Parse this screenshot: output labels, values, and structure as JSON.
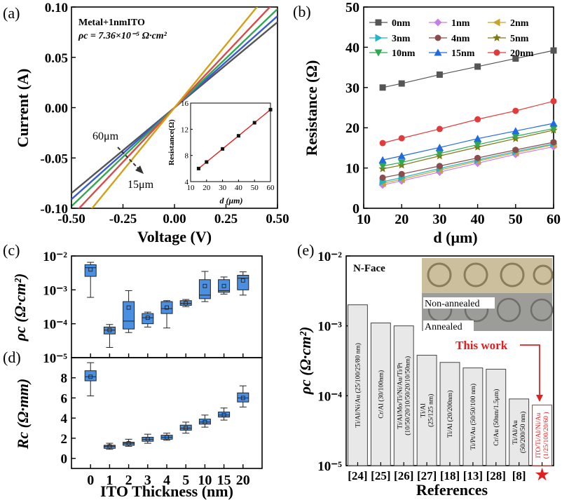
{
  "panels": {
    "a": {
      "label": "(a)",
      "xlabel": "Voltage (V)",
      "ylabel": "Current (A)",
      "xlim": [
        -0.5,
        0.5
      ],
      "ylim": [
        -0.1,
        0.1
      ],
      "xticks": [
        "-0.50",
        "-0.25",
        "0.00",
        "0.25",
        "0.50"
      ],
      "yticks": [
        "0.10",
        "0.05",
        "0.00",
        "-0.05",
        "-0.10"
      ],
      "annot1": "Metal+1nmITO",
      "annot2": "ρc = 7.36×10⁻⁵ Ω·cm²",
      "arrow_start": "60μm",
      "arrow_end": "15μm",
      "inset": {
        "xlabel": "d (μm)",
        "ylabel": "Resistance(Ω)",
        "xticks": [
          "10",
          "20",
          "30",
          "40",
          "50",
          "60"
        ],
        "yticks": [
          "4",
          "8",
          "12",
          "16"
        ]
      }
    },
    "b": {
      "label": "(b)",
      "xlabel": "d (μm)",
      "ylabel": "Resistance (Ω)",
      "xticks": [
        "10",
        "20",
        "30",
        "40",
        "50",
        "60"
      ],
      "yticks": [
        "0",
        "10",
        "20",
        "30",
        "40",
        "50"
      ]
    },
    "c": {
      "label": "(c)",
      "ylabel": "ρc (Ω·cm²)",
      "yticks": [
        "10⁻²",
        "10⁻³",
        "10⁻⁴",
        "10⁻⁵"
      ]
    },
    "d": {
      "label": "(d)",
      "ylabel": "Rc (Ω·mm)",
      "xlabel": "ITO Thickness (nm)",
      "yticks": [
        "8",
        "6",
        "4",
        "2",
        "0"
      ],
      "xticks": [
        "0",
        "1",
        "2",
        "3",
        "4",
        "5",
        "10",
        "15",
        "20"
      ]
    },
    "e": {
      "label": "(e)",
      "ylabel": "ρc (Ω·cm²)",
      "xlabel": "References",
      "yticks": [
        "10⁻²",
        "10⁻³",
        "10⁻⁴",
        "10⁻⁵"
      ],
      "nface": "N-Face",
      "non_annealed": "Non-annealed",
      "annealed": "Annealed",
      "this_work": "This work",
      "star": "★"
    }
  },
  "colors": {
    "iv_lines": [
      "#555555",
      "#3b5bd6",
      "#2fa84f",
      "#d94b4b",
      "#d4a017"
    ],
    "box_fill": "#4a90e2",
    "this_work": "#e02020"
  },
  "chart_data": [
    {
      "panel": "a",
      "type": "line",
      "title": "",
      "xlabel": "Voltage (V)",
      "ylabel": "Current (A)",
      "xlim": [
        -0.5,
        0.5
      ],
      "ylim": [
        -0.1,
        0.1
      ],
      "series": [
        {
          "x": [
            -0.5,
            0.5
          ],
          "y": [
            -0.085,
            0.085
          ]
        },
        {
          "x": [
            -0.5,
            0.5
          ],
          "y": [
            -0.091,
            0.091
          ]
        },
        {
          "x": [
            -0.5,
            0.5
          ],
          "y": [
            -0.098,
            0.098
          ]
        },
        {
          "x": [
            -0.5,
            0.5
          ],
          "y": [
            -0.108,
            0.108
          ]
        },
        {
          "x": [
            -0.5,
            0.5
          ],
          "y": [
            -0.125,
            0.125
          ]
        }
      ],
      "inset": {
        "type": "line",
        "x": [
          15,
          20,
          30,
          40,
          50,
          60
        ],
        "y": [
          6.0,
          7.0,
          9.0,
          11.0,
          13.0,
          15.0
        ],
        "xlim": [
          10,
          60
        ],
        "ylim": [
          4,
          16
        ]
      }
    },
    {
      "panel": "b",
      "type": "line",
      "xlabel": "d (μm)",
      "ylabel": "Resistance (Ω)",
      "xlim": [
        10,
        60
      ],
      "ylim": [
        0,
        50
      ],
      "x": [
        15,
        20,
        30,
        40,
        50,
        60
      ],
      "series": [
        {
          "name": "0nm",
          "color": "#555555",
          "marker": "square",
          "values": [
            30.0,
            31.0,
            33.2,
            35.2,
            37.2,
            39.2
          ]
        },
        {
          "name": "1nm",
          "color": "#c77ee8",
          "marker": "diamond",
          "values": [
            5.8,
            6.8,
            9.0,
            11.2,
            13.4,
            15.3
          ]
        },
        {
          "name": "2nm",
          "color": "#c9a227",
          "marker": "tri-left",
          "values": [
            6.2,
            7.2,
            9.5,
            11.7,
            13.8,
            15.8
          ]
        },
        {
          "name": "3nm",
          "color": "#22b5c5",
          "marker": "tri-right",
          "values": [
            6.6,
            7.6,
            9.9,
            12.0,
            14.1,
            16.0
          ]
        },
        {
          "name": "4nm",
          "color": "#8b4c4c",
          "marker": "circle",
          "values": [
            7.6,
            8.5,
            10.5,
            12.5,
            14.5,
            16.4
          ]
        },
        {
          "name": "5nm",
          "color": "#7a7a1a",
          "marker": "star",
          "values": [
            9.8,
            10.7,
            13.0,
            15.2,
            17.3,
            19.4
          ]
        },
        {
          "name": "10nm",
          "color": "#2fa84f",
          "marker": "tri-down",
          "values": [
            10.5,
            11.4,
            13.6,
            15.8,
            17.9,
            19.8
          ]
        },
        {
          "name": "15nm",
          "color": "#1e6be0",
          "marker": "tri-up",
          "values": [
            12.0,
            13.0,
            15.1,
            17.3,
            19.2,
            21.1
          ]
        },
        {
          "name": "20nm",
          "color": "#e23b3b",
          "marker": "circle",
          "values": [
            16.2,
            17.4,
            19.7,
            22.1,
            24.2,
            26.6
          ]
        }
      ]
    },
    {
      "panel": "c",
      "type": "box",
      "ylabel": "ρc (Ω·cm²)",
      "yscale": "log",
      "ylim": [
        1e-05,
        0.01
      ],
      "categories": [
        "0",
        "1",
        "2",
        "3",
        "4",
        "5",
        "10",
        "15",
        "20"
      ],
      "boxes": [
        {
          "min": 0.0006,
          "q1": 0.0025,
          "median": 0.0045,
          "q3": 0.0055,
          "max": 0.0065,
          "mean": 0.004
        },
        {
          "min": 2e-05,
          "q1": 5e-05,
          "median": 6.5e-05,
          "q3": 8e-05,
          "max": 9.5e-05,
          "mean": 6.5e-05
        },
        {
          "min": 5.5e-05,
          "q1": 7e-05,
          "median": 0.00012,
          "q3": 0.00045,
          "max": 0.00095,
          "mean": 0.0003
        },
        {
          "min": 8e-05,
          "q1": 0.0001,
          "median": 0.00015,
          "q3": 0.0002,
          "max": 0.00022,
          "mean": 0.00015
        },
        {
          "min": 7.5e-05,
          "q1": 0.0002,
          "median": 0.00028,
          "q3": 0.00045,
          "max": 0.00048,
          "mean": 0.0003
        },
        {
          "min": 0.00032,
          "q1": 0.00035,
          "median": 0.0004,
          "q3": 0.00048,
          "max": 0.00052,
          "mean": 0.0004
        },
        {
          "min": 0.00045,
          "q1": 0.00055,
          "median": 0.0007,
          "q3": 0.002,
          "max": 0.0035,
          "mean": 0.0013
        },
        {
          "min": 0.00075,
          "q1": 0.00085,
          "median": 0.00095,
          "q3": 0.002,
          "max": 0.0024,
          "mean": 0.0013
        },
        {
          "min": 0.0007,
          "q1": 0.001,
          "median": 0.0022,
          "q3": 0.0027,
          "max": 0.0034,
          "mean": 0.0019
        }
      ]
    },
    {
      "panel": "d",
      "type": "box",
      "xlabel": "ITO Thickness (nm)",
      "ylabel": "Rc (Ω·mm)",
      "ylim": [
        -1,
        10
      ],
      "categories": [
        "0",
        "1",
        "2",
        "3",
        "4",
        "5",
        "10",
        "15",
        "20"
      ],
      "boxes": [
        {
          "min": 6.2,
          "q1": 7.7,
          "median": 8.1,
          "q3": 8.7,
          "max": 9.5,
          "mean": 8.1
        },
        {
          "min": 0.9,
          "q1": 1.0,
          "median": 1.2,
          "q3": 1.3,
          "max": 1.5,
          "mean": 1.2
        },
        {
          "min": 1.2,
          "q1": 1.3,
          "median": 1.5,
          "q3": 1.6,
          "max": 1.9,
          "mean": 1.5
        },
        {
          "min": 1.5,
          "q1": 1.7,
          "median": 1.9,
          "q3": 2.1,
          "max": 2.4,
          "mean": 1.9
        },
        {
          "min": 1.8,
          "q1": 1.9,
          "median": 2.1,
          "q3": 2.3,
          "max": 2.5,
          "mean": 2.1
        },
        {
          "min": 2.5,
          "q1": 2.8,
          "median": 3.0,
          "q3": 3.3,
          "max": 3.6,
          "mean": 3.0
        },
        {
          "min": 3.1,
          "q1": 3.4,
          "median": 3.6,
          "q3": 3.9,
          "max": 4.3,
          "mean": 3.6
        },
        {
          "min": 3.8,
          "q1": 4.1,
          "median": 4.3,
          "q3": 4.6,
          "max": 5.0,
          "mean": 4.3
        },
        {
          "min": 5.1,
          "q1": 5.6,
          "median": 6.0,
          "q3": 6.5,
          "max": 7.2,
          "mean": 6.0
        }
      ]
    },
    {
      "panel": "e",
      "type": "bar",
      "xlabel": "References",
      "ylabel": "ρc (Ω·cm²)",
      "yscale": "log",
      "ylim": [
        1e-05,
        0.01
      ],
      "categories": [
        "[24]",
        "[25]",
        "[26]",
        "[27]",
        "[18]",
        "[13]",
        "[28]",
        "[8]",
        "★"
      ],
      "values": [
        0.002,
        0.0011,
        0.001,
        0.00038,
        0.0003,
        0.00025,
        0.00024,
        9e-05,
        7.36e-05
      ],
      "bar_labels": [
        [
          "Ti/Al/Ni/Au (25/100/25/80 nm)"
        ],
        [
          "Cr/Al (30/100nm)"
        ],
        [
          "Ti/Al/Mo/Ti/Ni/Au/Ti/Pt",
          "(10/50/20/10/50/20/10/50nm)"
        ],
        [
          "Ti/Al",
          "(25/125 nm)"
        ],
        [
          "Ti/Al (20/200nm)"
        ],
        [
          "Ti/Pt/Au (50/50/100 nm)"
        ],
        [
          "Cr/Au (50nm/1.5μm)"
        ],
        [
          "Ti/Al/Au",
          "(50/200/50 nm)"
        ],
        [
          "ITO/Ti/Al/Ni/Au",
          "(1/25/100/20/60 )"
        ]
      ]
    }
  ]
}
